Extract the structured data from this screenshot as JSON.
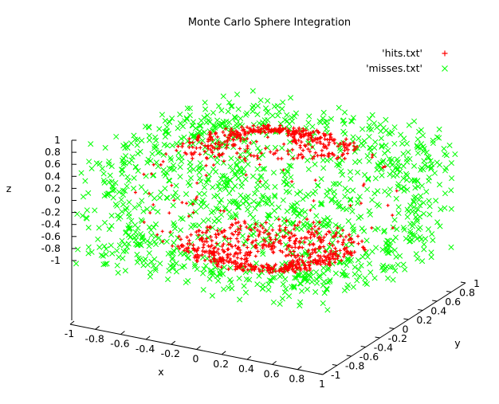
{
  "chart_data": {
    "type": "scatter",
    "title": "Monte Carlo Sphere Integration",
    "xlabel": "x",
    "ylabel": "y",
    "zlabel": "z",
    "xlim": [
      -1,
      1
    ],
    "ylim": [
      -1,
      1
    ],
    "zlim": [
      -1,
      1
    ],
    "x_ticks": [
      "-1",
      "-0.8",
      "-0.6",
      "-0.4",
      "-0.2",
      "0",
      "0.2",
      "0.4",
      "0.6",
      "0.8",
      "1"
    ],
    "y_ticks": [
      "-1",
      "-0.8",
      "-0.6",
      "-0.4",
      "-0.2",
      "0",
      "0.2",
      "0.4",
      "0.6",
      "0.8",
      "1"
    ],
    "z_ticks": [
      "-1",
      "-0.8",
      "-0.6",
      "-0.4",
      "-0.2",
      "0",
      "0.2",
      "0.4",
      "0.6",
      "0.8",
      "1"
    ],
    "legend_position": "top-right",
    "grid": false,
    "series": [
      {
        "name": "'hits.txt'",
        "marker": "plus",
        "color": "#ff0000",
        "points_visible_estimate": [
          [
            0.1,
            0.55,
            0.85
          ],
          [
            0.2,
            0.45,
            0.88
          ],
          [
            -0.05,
            0.6,
            0.82
          ],
          [
            0.3,
            0.6,
            0.8
          ],
          [
            0.05,
            0.35,
            0.9
          ],
          [
            0.15,
            0.7,
            0.75
          ],
          [
            0.35,
            0.4,
            0.83
          ],
          [
            -0.1,
            0.45,
            0.86
          ],
          [
            -0.3,
            -0.55,
            -0.8
          ],
          [
            -0.2,
            -0.45,
            -0.85
          ],
          [
            -0.4,
            -0.4,
            -0.78
          ],
          [
            -0.1,
            -0.6,
            -0.82
          ],
          [
            -0.25,
            -0.7,
            -0.72
          ],
          [
            -0.35,
            -0.3,
            -0.86
          ],
          [
            -0.05,
            -0.5,
            -0.85
          ],
          [
            -0.15,
            -0.35,
            -0.9
          ]
        ]
      },
      {
        "name": "'misses.txt'",
        "marker": "x",
        "color": "#00ff00",
        "points_visible_estimate": [
          [
            -0.9,
            -0.9,
            0.9
          ],
          [
            0.9,
            0.9,
            0.9
          ],
          [
            0.9,
            -0.9,
            -0.9
          ],
          [
            -0.9,
            0.9,
            -0.9
          ],
          [
            -0.95,
            0.0,
            0.95
          ],
          [
            0.95,
            0.0,
            -0.95
          ],
          [
            0.0,
            -0.95,
            0.95
          ],
          [
            0.0,
            0.95,
            -0.95
          ]
        ]
      }
    ]
  }
}
